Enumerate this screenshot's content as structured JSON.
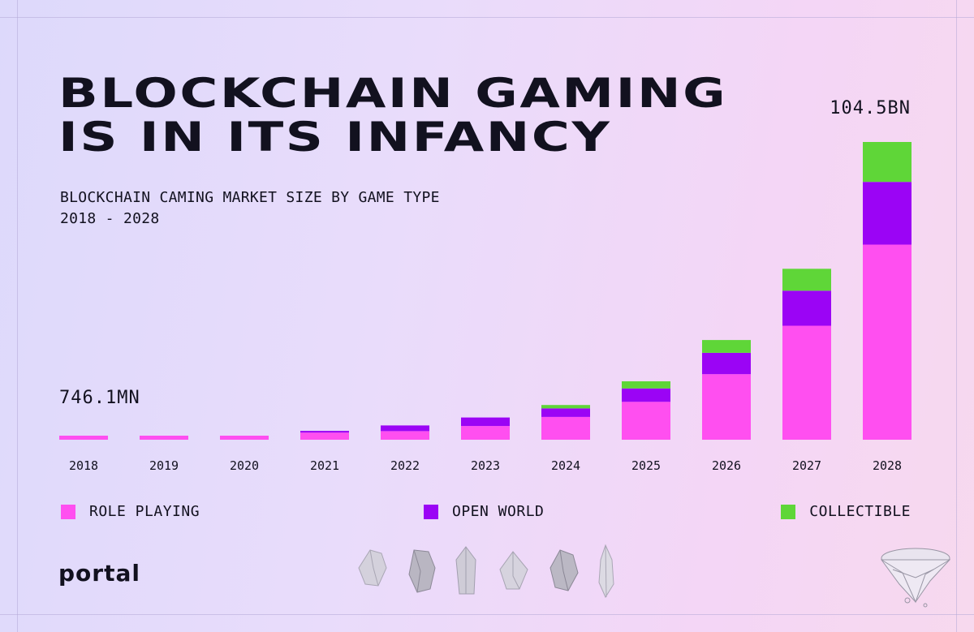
{
  "title_line1": "BLOCKCHAIN GAMING",
  "title_line2": "IS IN ITS INFANCY",
  "subtitle_line1": "BLOCKCHAIN CAMING MARKET SIZE BY GAME TYPE",
  "subtitle_line2": "2018 - 2028",
  "first_value_label": "746.1MN",
  "last_value_label": "104.5BN",
  "logo": "portal",
  "colors": {
    "role_playing": "#ff4ff0",
    "open_world": "#9b04f5",
    "collectible": "#5fd638",
    "text": "#12111f"
  },
  "chart_data": {
    "type": "bar",
    "stacked": true,
    "title": "BLOCKCHAIN CAMING MARKET SIZE BY GAME TYPE",
    "subtitle": "2018 - 2028",
    "categories": [
      "2018",
      "2019",
      "2020",
      "2021",
      "2022",
      "2023",
      "2024",
      "2025",
      "2026",
      "2027",
      "2028"
    ],
    "series": [
      {
        "name": "ROLE PLAYING",
        "color": "#ff4ff0",
        "values": [
          0.75,
          0.9,
          1.3,
          2.5,
          3.0,
          4.8,
          8.0,
          13.3,
          23.0,
          40.0,
          68.5
        ]
      },
      {
        "name": "OPEN WORLD",
        "color": "#9b04f5",
        "values": [
          0,
          0,
          0,
          0.6,
          2.0,
          3.0,
          3.0,
          4.7,
          7.5,
          12.3,
          22.0
        ]
      },
      {
        "name": "COLLECTIBLE",
        "color": "#5fd638",
        "values": [
          0,
          0,
          0,
          0,
          0,
          0,
          1.2,
          2.5,
          4.5,
          7.7,
          14.0
        ]
      }
    ],
    "annotations": [
      {
        "category": "2018",
        "text": "746.1MN"
      },
      {
        "category": "2028",
        "text": "104.5BN"
      }
    ],
    "ylim": [
      0,
      104.5
    ],
    "grid": false,
    "legend_position": "bottom"
  }
}
